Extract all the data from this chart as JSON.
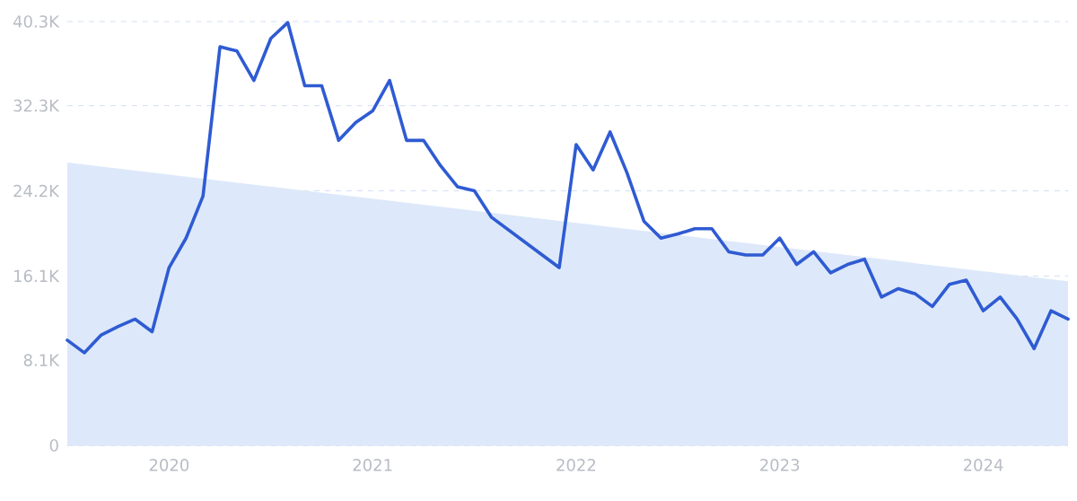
{
  "chart_data": {
    "type": "line",
    "x": [
      "2019-07",
      "2019-08",
      "2019-09",
      "2019-10",
      "2019-11",
      "2019-12",
      "2020-01",
      "2020-02",
      "2020-03",
      "2020-04",
      "2020-05",
      "2020-06",
      "2020-07",
      "2020-08",
      "2020-09",
      "2020-10",
      "2020-11",
      "2020-12",
      "2021-01",
      "2021-02",
      "2021-03",
      "2021-04",
      "2021-05",
      "2021-06",
      "2021-07",
      "2021-08",
      "2021-09",
      "2021-10",
      "2021-11",
      "2021-12",
      "2022-01",
      "2022-02",
      "2022-03",
      "2022-04",
      "2022-05",
      "2022-06",
      "2022-07",
      "2022-08",
      "2022-09",
      "2022-10",
      "2022-11",
      "2022-12",
      "2023-01",
      "2023-02",
      "2023-03",
      "2023-04",
      "2023-05",
      "2023-06",
      "2023-07",
      "2023-08",
      "2023-09",
      "2023-10",
      "2023-11",
      "2023-12",
      "2024-01",
      "2024-02",
      "2024-03",
      "2024-04",
      "2024-05",
      "2024-06"
    ],
    "series": [
      {
        "type": "area",
        "color": "#dde9fa",
        "x": [
          "2019-07",
          "2024-06"
        ],
        "values": [
          26900,
          15600
        ]
      },
      {
        "color": "#2f5bd3",
        "values": [
          10000,
          8800,
          10500,
          11300,
          12000,
          10800,
          16900,
          19700,
          23700,
          37900,
          37500,
          34700,
          38700,
          40200,
          34200,
          34200,
          29000,
          30700,
          31800,
          34700,
          29000,
          29000,
          26600,
          24600,
          24200,
          21700,
          20500,
          19300,
          18100,
          16900,
          28600,
          26200,
          29800,
          25900,
          21300,
          19700,
          20100,
          20600,
          20600,
          18400,
          18100,
          18100,
          19700,
          17200,
          18400,
          16400,
          17200,
          17700,
          14100,
          14900,
          14400,
          13200,
          15300,
          15700,
          12800,
          14100,
          12000,
          9200,
          12800,
          12000
        ]
      }
    ],
    "xlim": [
      "2019-07",
      "2024-06"
    ],
    "xticks": [
      "2020",
      "2021",
      "2022",
      "2023",
      "2024"
    ],
    "ylim": [
      0,
      40300
    ],
    "yticks": [
      0,
      {
        "value": 8100,
        "label": "8.1K"
      },
      {
        "value": 16100,
        "label": "16.1K"
      },
      {
        "value": 24200,
        "label": "24.2K"
      },
      {
        "value": 32300,
        "label": "32.3K"
      },
      {
        "value": 40300,
        "label": "40.3K"
      }
    ],
    "grid": "y"
  }
}
